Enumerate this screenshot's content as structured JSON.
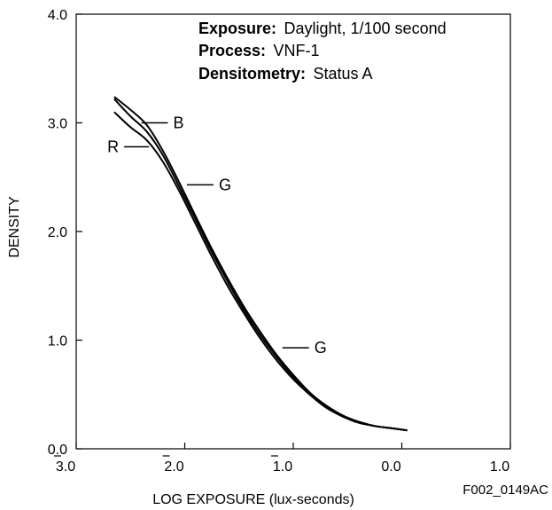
{
  "chart_data": {
    "type": "line",
    "xlabel": "LOG EXPOSURE (lux-seconds)",
    "ylabel": "DENSITY",
    "xlim": [
      -3.0,
      1.0
    ],
    "ylim": [
      0.0,
      4.0
    ],
    "x_ticks": [
      {
        "value": -3.0,
        "label": "3.0",
        "bar": true
      },
      {
        "value": -2.0,
        "label": "2.0",
        "bar": true
      },
      {
        "value": -1.0,
        "label": "1.0",
        "bar": true
      },
      {
        "value": 0.0,
        "label": "0.0",
        "bar": false
      },
      {
        "value": 1.0,
        "label": "1.0",
        "bar": false
      }
    ],
    "y_ticks": [
      {
        "value": 0.0,
        "label": "0.0"
      },
      {
        "value": 1.0,
        "label": "1.0"
      },
      {
        "value": 2.0,
        "label": "2.0"
      },
      {
        "value": 3.0,
        "label": "3.0"
      },
      {
        "value": 4.0,
        "label": "4.0"
      }
    ],
    "grid": false,
    "info_lines": [
      {
        "bold": "Exposure:",
        "text": "Daylight, 1/100 second"
      },
      {
        "bold": "Process:",
        "text": "VNF-1"
      },
      {
        "bold": "Densitometry:",
        "text": "Status A"
      }
    ],
    "series": [
      {
        "name": "B",
        "color": "#000000",
        "x": [
          -2.65,
          -2.5,
          -2.35,
          -2.2,
          -2.05,
          -1.9,
          -1.75,
          -1.6,
          -1.45,
          -1.3,
          -1.15,
          -1.0,
          -0.85,
          -0.7,
          -0.55,
          -0.4,
          -0.25,
          -0.1,
          0.05
        ],
        "y": [
          3.24,
          3.12,
          2.98,
          2.74,
          2.45,
          2.14,
          1.84,
          1.56,
          1.3,
          1.07,
          0.86,
          0.68,
          0.52,
          0.4,
          0.31,
          0.25,
          0.21,
          0.19,
          0.17
        ]
      },
      {
        "name": "G",
        "color": "#000000",
        "x": [
          -2.65,
          -2.5,
          -2.35,
          -2.2,
          -2.05,
          -1.9,
          -1.75,
          -1.6,
          -1.45,
          -1.3,
          -1.15,
          -1.0,
          -0.85,
          -0.7,
          -0.55,
          -0.4,
          -0.25,
          -0.1,
          0.05
        ],
        "y": [
          3.22,
          3.06,
          2.92,
          2.7,
          2.41,
          2.11,
          1.81,
          1.53,
          1.27,
          1.04,
          0.84,
          0.66,
          0.51,
          0.39,
          0.3,
          0.25,
          0.21,
          0.19,
          0.17
        ]
      },
      {
        "name": "R",
        "color": "#000000",
        "x": [
          -2.65,
          -2.5,
          -2.35,
          -2.2,
          -2.05,
          -1.9,
          -1.75,
          -1.6,
          -1.45,
          -1.3,
          -1.15,
          -1.0,
          -0.85,
          -0.7,
          -0.55,
          -0.4,
          -0.25,
          -0.1,
          0.05
        ],
        "y": [
          3.1,
          2.96,
          2.84,
          2.64,
          2.37,
          2.07,
          1.77,
          1.49,
          1.24,
          1.01,
          0.81,
          0.64,
          0.5,
          0.38,
          0.3,
          0.24,
          0.21,
          0.19,
          0.17
        ]
      }
    ],
    "annotations": [
      {
        "label": "B",
        "series": "B",
        "x": -2.4,
        "y": 3.0
      },
      {
        "label": "R",
        "series": "R",
        "x": -2.33,
        "y": 2.78
      },
      {
        "label": "G",
        "series": "G",
        "x": -1.98,
        "y": 2.43
      },
      {
        "label": "G",
        "series": "G",
        "x": -1.1,
        "y": 0.93
      }
    ]
  },
  "figure_id": "F002_0149AC"
}
